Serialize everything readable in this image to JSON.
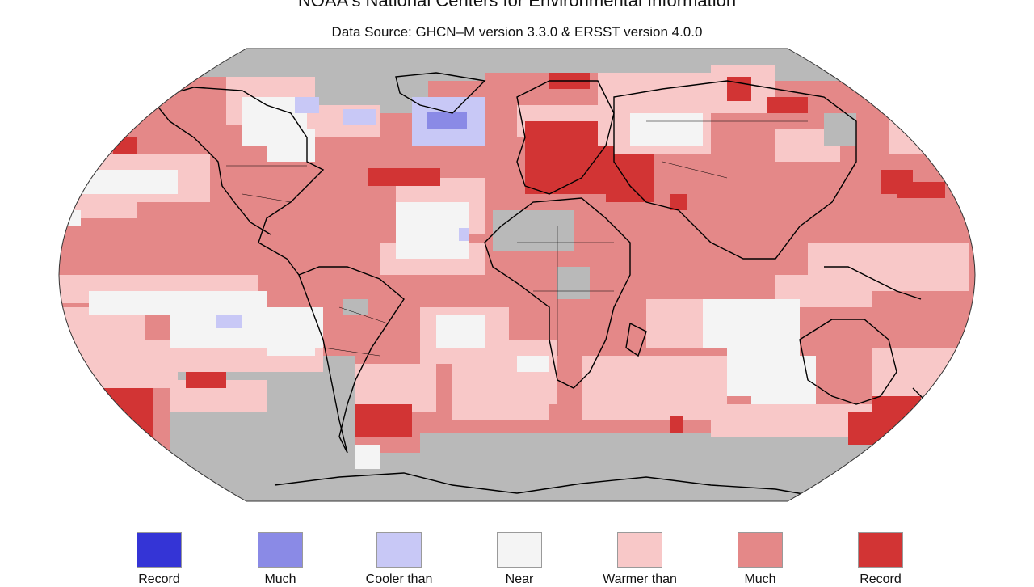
{
  "header": {
    "title": "NOAA's National Centers for Environmental Information",
    "subtitle": "Data Source: GHCN–M version 3.3.0 & ERSST version 4.0.0"
  },
  "map": {
    "projection": "Robinson",
    "no_data_color": "#b9b9b9",
    "coast_color": "#000000"
  },
  "legend": [
    {
      "label": "Record",
      "color": "#3434d6"
    },
    {
      "label": "Much",
      "color": "#8a8ae6"
    },
    {
      "label": "Cooler than",
      "color": "#c8c8f6"
    },
    {
      "label": "Near",
      "color": "#f4f4f4"
    },
    {
      "label": "Warmer than",
      "color": "#f8c8c8"
    },
    {
      "label": "Much",
      "color": "#e48888"
    },
    {
      "label": "Record",
      "color": "#d23434"
    }
  ]
}
